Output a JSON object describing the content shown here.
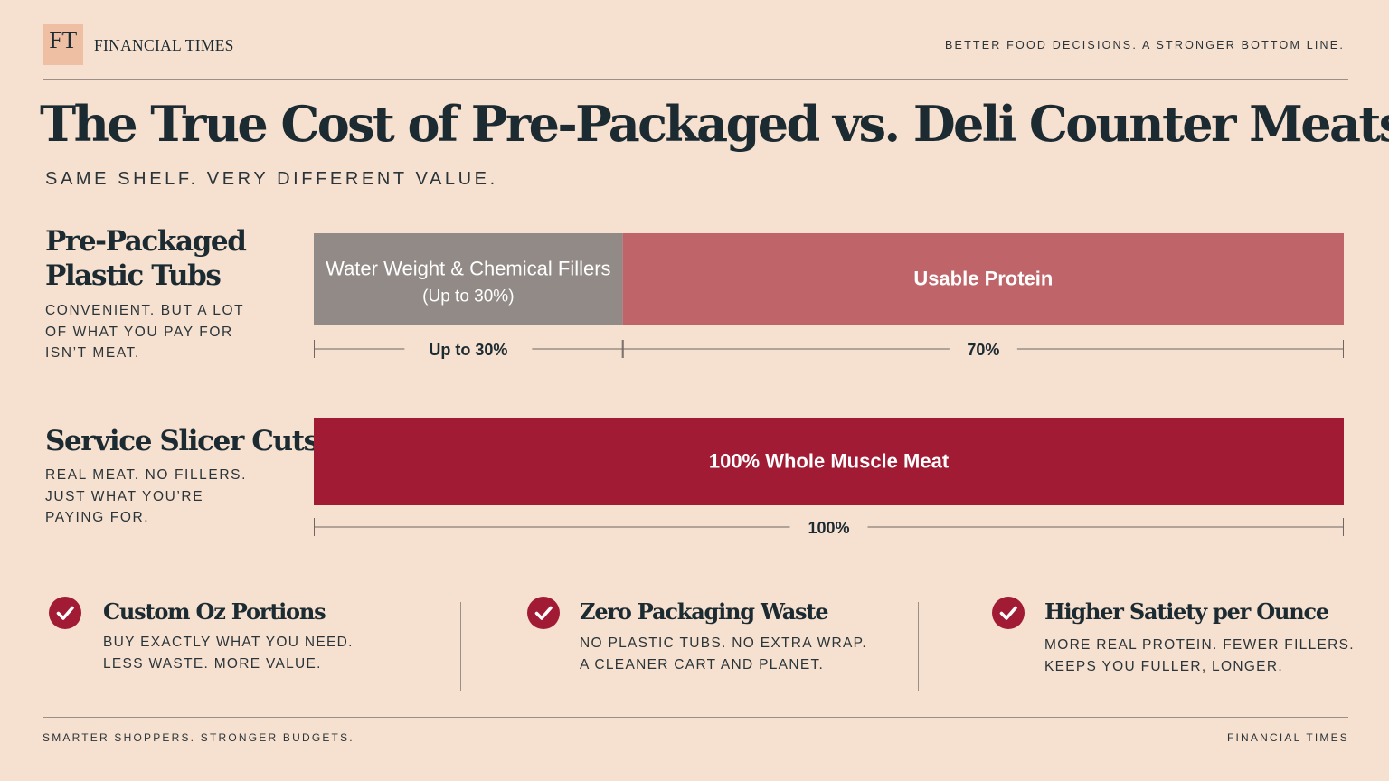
{
  "header": {
    "logo_text": "FT",
    "brand": "FINANCIAL TIMES",
    "tagline": "BETTER FOOD DECISIONS. A STRONGER BOTTOM LINE."
  },
  "title": "The True Cost of Pre-Packaged vs. Deli Counter Meats",
  "subtitle": "SAME SHELF. VERY DIFFERENT VALUE.",
  "rows": [
    {
      "title_line1": "Pre-Packaged",
      "title_line2": "Plastic Tubs",
      "desc_line1": "Convenient. But a lot",
      "desc_line2": "of what you pay for",
      "desc_line3": "isn’t meat."
    },
    {
      "title_line1": "Service Slicer Cuts",
      "desc_line1": "Real meat. No fillers.",
      "desc_line2": "Just what you’re",
      "desc_line3": "paying for."
    }
  ],
  "chart_data": {
    "type": "bar",
    "orientation": "horizontal",
    "stacked": true,
    "categories": [
      "Pre-Packaged Plastic Tubs",
      "Service Slicer Cuts"
    ],
    "bars": [
      {
        "category": "Pre-Packaged Plastic Tubs",
        "segments": [
          {
            "label": "Water Weight & Chemical Fillers",
            "sublabel": "(Up to 30%)",
            "value": 30,
            "scale_label": "Up to 30%",
            "color": "#918a86"
          },
          {
            "label": "Usable Protein",
            "value": 70,
            "scale_label": "70%",
            "color": "#bf6468"
          }
        ]
      },
      {
        "category": "Service Slicer Cuts",
        "segments": [
          {
            "label": "100% Whole Muscle Meat",
            "value": 100,
            "scale_label": "100%",
            "color": "#a01b33"
          }
        ]
      }
    ],
    "xlim": [
      0,
      100
    ],
    "grid": false,
    "legend": "none"
  },
  "benefits": [
    {
      "icon": "check-circle-icon",
      "title": "Custom Oz Portions",
      "line1": "Buy exactly what you need.",
      "line2": "Less waste. More value."
    },
    {
      "icon": "check-circle-icon",
      "title": "Zero Packaging Waste",
      "line1": "No plastic tubs. No extra wrap.",
      "line2": "A cleaner cart and planet."
    },
    {
      "icon": "check-circle-icon",
      "title": "Higher Satiety per Ounce",
      "line1": "More real protein. Fewer fillers.",
      "line2": "Keeps you fuller, longer."
    }
  ],
  "footer": {
    "left": "SMARTER SHOPPERS. STRONGER BUDGETS.",
    "right": "FINANCIAL TIMES"
  },
  "colors": {
    "background": "#f6e0cf",
    "accent": "#a01b33",
    "filler": "#918a86",
    "protein": "#bf6468",
    "text": "#1c2a32"
  }
}
